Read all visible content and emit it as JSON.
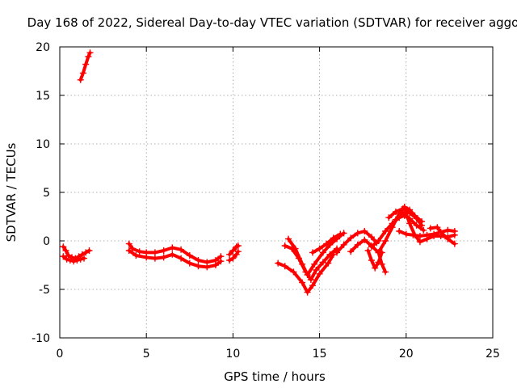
{
  "chart_data": {
    "type": "scatter",
    "title": "Day 168 of 2022, Sidereal Day-to-day VTEC variation (SDTVAR) for receiver aggo",
    "xlabel": "GPS time / hours",
    "ylabel": "SDTVAR / TECUs",
    "xlim": [
      0,
      25
    ],
    "ylim": [
      -10,
      20
    ],
    "xticks": [
      0,
      5,
      10,
      15,
      20,
      25
    ],
    "yticks": [
      -10,
      -5,
      0,
      5,
      10,
      15,
      20
    ],
    "grid": true,
    "marker": "+",
    "color": "#ff0000",
    "series": [
      {
        "name": "s1",
        "points": [
          [
            1.2,
            16.6
          ],
          [
            1.35,
            17.3
          ],
          [
            1.5,
            18.2
          ],
          [
            1.65,
            19.0
          ],
          [
            1.75,
            19.4
          ]
        ]
      },
      {
        "name": "s2",
        "points": [
          [
            0.2,
            -0.6
          ],
          [
            0.35,
            -1.0
          ],
          [
            0.5,
            -1.5
          ],
          [
            0.7,
            -1.7
          ],
          [
            0.9,
            -1.8
          ],
          [
            1.1,
            -1.6
          ],
          [
            1.3,
            -1.4
          ],
          [
            1.5,
            -1.2
          ],
          [
            1.7,
            -1.0
          ]
        ]
      },
      {
        "name": "s3",
        "points": [
          [
            0.2,
            -1.6
          ],
          [
            0.4,
            -1.9
          ],
          [
            0.6,
            -2.0
          ],
          [
            0.8,
            -2.1
          ],
          [
            1.0,
            -2.0
          ],
          [
            1.2,
            -1.9
          ],
          [
            1.4,
            -1.8
          ]
        ]
      },
      {
        "name": "s4",
        "points": [
          [
            4.0,
            -0.3
          ],
          [
            4.2,
            -0.8
          ],
          [
            4.6,
            -1.1
          ],
          [
            5.0,
            -1.2
          ],
          [
            5.5,
            -1.2
          ],
          [
            6.0,
            -1.0
          ],
          [
            6.5,
            -0.7
          ],
          [
            7.0,
            -0.9
          ],
          [
            7.5,
            -1.5
          ],
          [
            8.0,
            -2.0
          ],
          [
            8.5,
            -2.2
          ],
          [
            9.0,
            -2.0
          ],
          [
            9.3,
            -1.6
          ]
        ]
      },
      {
        "name": "s5",
        "points": [
          [
            4.0,
            -1.0
          ],
          [
            4.4,
            -1.5
          ],
          [
            5.0,
            -1.7
          ],
          [
            5.5,
            -1.8
          ],
          [
            6.0,
            -1.7
          ],
          [
            6.5,
            -1.4
          ],
          [
            7.0,
            -1.8
          ],
          [
            7.5,
            -2.3
          ],
          [
            8.0,
            -2.6
          ],
          [
            8.5,
            -2.7
          ],
          [
            9.0,
            -2.5
          ],
          [
            9.3,
            -2.1
          ]
        ]
      },
      {
        "name": "s6",
        "points": [
          [
            9.8,
            -1.4
          ],
          [
            10.0,
            -1.0
          ],
          [
            10.2,
            -0.6
          ],
          [
            10.3,
            -0.5
          ]
        ]
      },
      {
        "name": "s7",
        "points": [
          [
            9.8,
            -2.0
          ],
          [
            10.0,
            -1.8
          ],
          [
            10.2,
            -1.4
          ],
          [
            10.3,
            -1.1
          ]
        ]
      },
      {
        "name": "s8",
        "points": [
          [
            12.6,
            -2.3
          ],
          [
            13.0,
            -2.6
          ],
          [
            13.5,
            -3.2
          ],
          [
            14.0,
            -4.3
          ],
          [
            14.3,
            -5.3
          ],
          [
            14.6,
            -4.6
          ],
          [
            15.0,
            -3.4
          ],
          [
            15.5,
            -2.3
          ],
          [
            15.8,
            -1.4
          ]
        ]
      },
      {
        "name": "s9",
        "points": [
          [
            13.0,
            -0.5
          ],
          [
            13.4,
            -0.8
          ],
          [
            13.8,
            -1.8
          ],
          [
            14.2,
            -3.2
          ],
          [
            14.5,
            -4.0
          ],
          [
            14.8,
            -3.0
          ],
          [
            15.2,
            -2.2
          ],
          [
            15.6,
            -1.4
          ],
          [
            16.0,
            -0.8
          ]
        ]
      },
      {
        "name": "s10",
        "points": [
          [
            13.2,
            0.2
          ],
          [
            13.6,
            -0.8
          ],
          [
            14.0,
            -2.4
          ],
          [
            14.3,
            -3.5
          ],
          [
            14.7,
            -2.4
          ],
          [
            15.2,
            -1.2
          ],
          [
            15.6,
            -0.4
          ],
          [
            16.0,
            0.2
          ],
          [
            16.4,
            0.8
          ]
        ]
      },
      {
        "name": "s11",
        "points": [
          [
            14.6,
            -1.2
          ],
          [
            15.0,
            -0.8
          ],
          [
            15.4,
            -0.3
          ],
          [
            15.8,
            0.3
          ],
          [
            16.2,
            0.7
          ]
        ]
      },
      {
        "name": "s12",
        "points": [
          [
            16.0,
            -1.2
          ],
          [
            16.4,
            -0.4
          ],
          [
            16.8,
            0.3
          ],
          [
            17.2,
            0.8
          ],
          [
            17.6,
            1.0
          ],
          [
            18.0,
            0.4
          ],
          [
            18.3,
            -0.2
          ]
        ]
      },
      {
        "name": "s13",
        "points": [
          [
            16.8,
            -1.1
          ],
          [
            17.2,
            -0.4
          ],
          [
            17.6,
            0.1
          ],
          [
            18.0,
            -0.5
          ],
          [
            18.4,
            -1.2
          ],
          [
            18.6,
            -2.4
          ],
          [
            18.8,
            -3.2
          ]
        ]
      },
      {
        "name": "s14",
        "points": [
          [
            17.8,
            -1.0
          ],
          [
            18.0,
            -2.0
          ],
          [
            18.2,
            -2.8
          ],
          [
            18.4,
            -2.2
          ],
          [
            18.6,
            -1.2
          ]
        ]
      },
      {
        "name": "s15",
        "points": [
          [
            18.0,
            -0.6
          ],
          [
            18.4,
            0.0
          ],
          [
            18.8,
            1.0
          ],
          [
            19.2,
            1.8
          ],
          [
            19.6,
            2.4
          ],
          [
            19.9,
            2.6
          ],
          [
            20.2,
            2.3
          ],
          [
            20.6,
            1.6
          ],
          [
            21.0,
            1.1
          ]
        ]
      },
      {
        "name": "s16",
        "points": [
          [
            18.4,
            -1.2
          ],
          [
            18.8,
            0.0
          ],
          [
            19.2,
            1.4
          ],
          [
            19.6,
            2.8
          ],
          [
            19.9,
            3.5
          ],
          [
            20.2,
            3.2
          ],
          [
            20.5,
            2.6
          ],
          [
            20.9,
            2.0
          ]
        ]
      },
      {
        "name": "s17",
        "points": [
          [
            19.4,
            2.2
          ],
          [
            19.8,
            2.9
          ],
          [
            20.0,
            2.8
          ],
          [
            20.2,
            1.8
          ],
          [
            20.5,
            0.6
          ],
          [
            20.8,
            -0.1
          ],
          [
            21.2,
            0.2
          ],
          [
            21.6,
            0.5
          ],
          [
            22.0,
            0.5
          ],
          [
            22.4,
            0.4
          ],
          [
            22.8,
            0.6
          ]
        ]
      },
      {
        "name": "s18",
        "points": [
          [
            19.6,
            1.0
          ],
          [
            20.0,
            0.7
          ],
          [
            20.4,
            0.6
          ],
          [
            20.8,
            0.5
          ],
          [
            21.2,
            0.6
          ],
          [
            21.6,
            0.7
          ],
          [
            22.0,
            0.9
          ],
          [
            22.4,
            1.1
          ],
          [
            22.8,
            1.0
          ]
        ]
      },
      {
        "name": "s19",
        "points": [
          [
            21.4,
            1.3
          ],
          [
            21.8,
            1.4
          ],
          [
            22.0,
            0.9
          ],
          [
            22.4,
            0.2
          ],
          [
            22.8,
            -0.3
          ]
        ]
      },
      {
        "name": "s20",
        "points": [
          [
            19.0,
            2.4
          ],
          [
            19.4,
            3.0
          ],
          [
            19.8,
            3.3
          ],
          [
            20.2,
            2.9
          ],
          [
            20.6,
            2.3
          ],
          [
            20.9,
            1.6
          ]
        ]
      }
    ]
  }
}
